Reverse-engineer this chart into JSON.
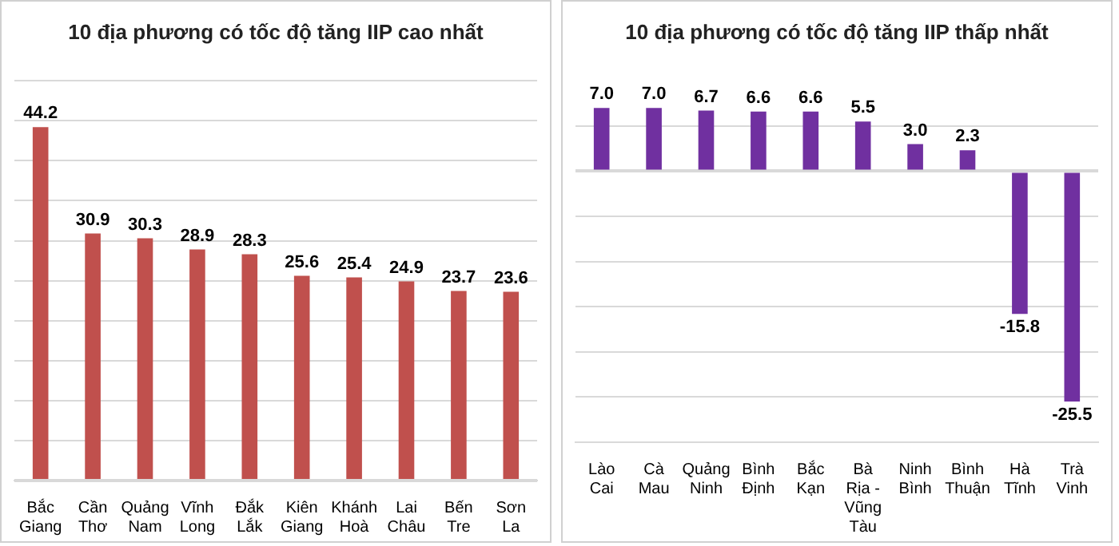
{
  "chart_data": [
    {
      "type": "bar",
      "title": "10 địa phương có tốc độ tăng IIP cao nhất",
      "categories": [
        "Bắc Giang",
        "Cần Thơ",
        "Quảng Nam",
        "Vĩnh Long",
        "Đắk Lắk",
        "Kiên Giang",
        "Khánh Hoà",
        "Lai Châu",
        "Bến Tre",
        "Sơn La"
      ],
      "series": [
        {
          "color": "#c0504d",
          "values": [
            44.2,
            30.9,
            30.3,
            28.9,
            28.3,
            25.6,
            25.4,
            24.9,
            23.7,
            23.6
          ]
        }
      ],
      "ylim": [
        0,
        50
      ],
      "yticks": [
        {
          "value": 0,
          "label": null
        },
        {
          "value": 5,
          "label": null
        },
        {
          "value": 10,
          "label": null
        },
        {
          "value": 15,
          "label": null
        },
        {
          "value": 20,
          "label": null
        },
        {
          "value": 25,
          "label": null
        },
        {
          "value": 30,
          "label": null
        },
        {
          "value": 35,
          "label": null
        },
        {
          "value": 40,
          "label": null
        },
        {
          "value": 45,
          "label": null
        },
        {
          "value": 50,
          "label": null
        }
      ],
      "grid": "y",
      "tick_labels": "x",
      "data_labels": true,
      "legend": false
    },
    {
      "type": "bar",
      "title": "10 địa phương có tốc độ tăng IIP thấp nhất",
      "categories": [
        "Lào Cai",
        "Cà Mau",
        "Quảng Ninh",
        "Bình Định",
        "Bắc Kạn",
        "Bà Rịa - Vũng Tàu",
        "Ninh Bình",
        "Bình Thuận",
        "Hà Tĩnh",
        "Trà Vinh"
      ],
      "series": [
        {
          "color": "#7030a0",
          "values": [
            7.0,
            7.0,
            6.7,
            6.6,
            6.6,
            5.5,
            3.0,
            2.3,
            -15.8,
            -25.5
          ],
          "value_labels": [
            "7.0",
            "7.0",
            "6.7",
            "6.6",
            "6.6",
            "5.5",
            "3.0",
            "2.3",
            "-15.8",
            "-25.5"
          ]
        }
      ],
      "yticks": [
        {
          "value": -30,
          "label": null
        },
        {
          "value": -25,
          "label": null
        },
        {
          "value": -20,
          "label": null
        },
        {
          "value": -15,
          "label": null
        },
        {
          "value": -10,
          "label": null
        },
        {
          "value": -5,
          "label": null
        },
        {
          "value": 0,
          "label": null
        },
        {
          "value": 5,
          "label": null
        }
      ],
      "grid": "y",
      "tick_labels": "x",
      "legend": false
    }
  ]
}
